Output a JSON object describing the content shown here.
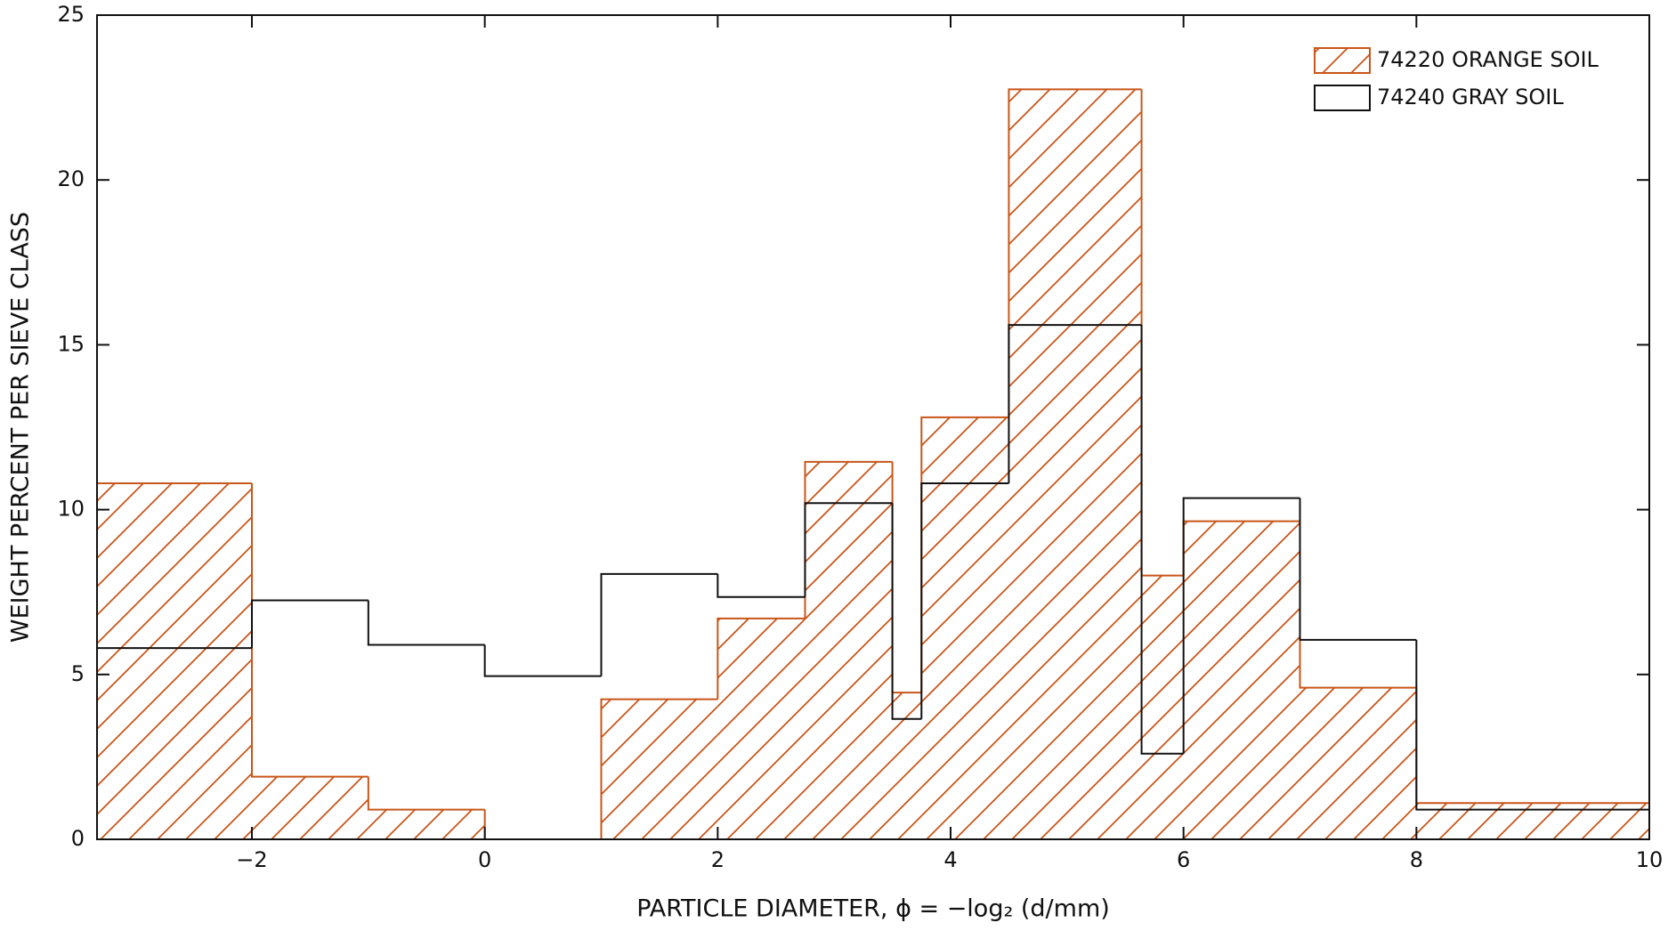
{
  "chart_data": {
    "type": "histogram",
    "xlabel": "PARTICLE DIAMETER, ϕ = −log₂ (d/mm)",
    "ylabel": "WEIGHT PERCENT PER SIEVE CLASS",
    "bins": [
      -3.33,
      -2,
      -1,
      0,
      1,
      2,
      2.75,
      3.5,
      3.75,
      4.5,
      5.64,
      6,
      7,
      8,
      10
    ],
    "series": [
      {
        "name": "74220 ORANGE SOIL",
        "color": "#c8561a",
        "hatch": true,
        "values": [
          10.8,
          1.9,
          0.9,
          0,
          4.25,
          6.7,
          11.45,
          4.45,
          12.8,
          22.75,
          8.0,
          9.65,
          4.6,
          1.1
        ]
      },
      {
        "name": "74240 GRAY SOIL",
        "color": "#111111",
        "hatch": false,
        "values": [
          5.8,
          7.25,
          5.9,
          4.95,
          8.05,
          7.35,
          10.2,
          3.65,
          10.8,
          15.6,
          2.6,
          10.35,
          6.05,
          0.9
        ]
      }
    ],
    "xlim": [
      -3.33,
      10
    ],
    "ylim": [
      0,
      25
    ],
    "xticks": [
      {
        "value": -2,
        "label": "−2"
      },
      0,
      2,
      4,
      6,
      8,
      10
    ],
    "yticks": [
      0,
      5,
      10,
      15,
      20,
      25
    ],
    "legend": "upper right"
  }
}
